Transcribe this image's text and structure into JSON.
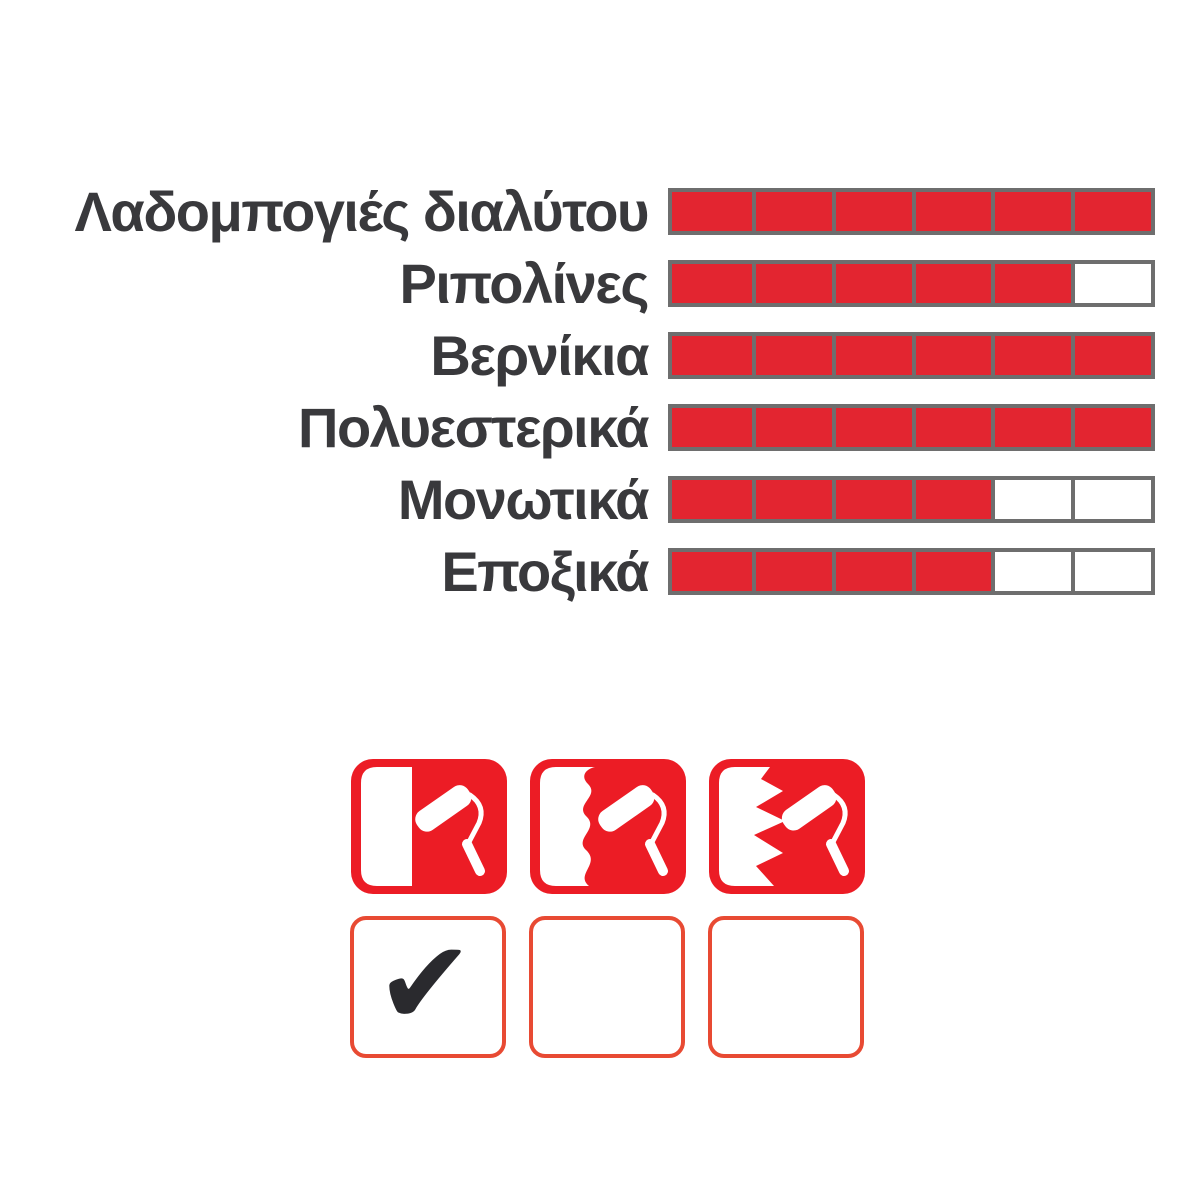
{
  "chart_data": {
    "type": "bar",
    "title": "",
    "xlabel": "",
    "ylabel": "",
    "categories": [
      "Λαδομπογιές διαλύτου",
      "Ριπολίνες",
      "Βερνίκια",
      "Πολυεστερικά",
      "Μονωτικά",
      "Εποξικά"
    ],
    "values": [
      6,
      5,
      6,
      6,
      4,
      4
    ],
    "max_segments": 6,
    "grid": false,
    "legend_position": "none",
    "bar_fill_color": "#e32530",
    "bar_border_color": "#6e6e6e",
    "bar_empty_color": "#ffffff"
  },
  "surface_icons": {
    "icon_red": "#ec1c25",
    "items": [
      {
        "name": "paint-roller-smooth-edge-icon",
        "edge": "straight"
      },
      {
        "name": "paint-roller-wavy-edge-icon",
        "edge": "wavy"
      },
      {
        "name": "paint-roller-jagged-edge-icon",
        "edge": "jagged"
      }
    ]
  },
  "checkboxes": {
    "border_color": "#e84a33",
    "check_glyph": "✔",
    "check_color": "#2a2a2e",
    "items": [
      {
        "checked": true
      },
      {
        "checked": false
      },
      {
        "checked": false
      }
    ]
  },
  "text_color": "#39393c"
}
